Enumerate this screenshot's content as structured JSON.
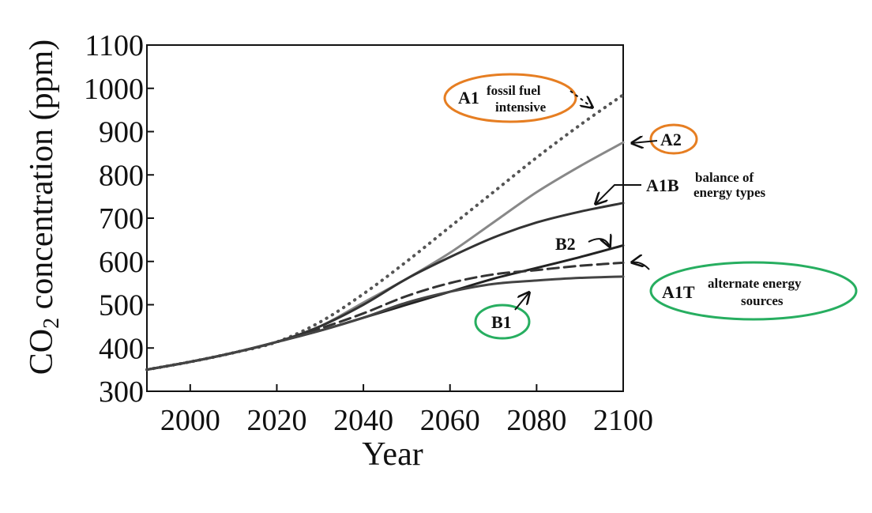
{
  "chart_data": {
    "type": "line",
    "xlabel": "Year",
    "ylabel_main": "CO",
    "ylabel_sub": "2",
    "ylabel_rest": " concentration (ppm)",
    "xlim": [
      1990,
      2100
    ],
    "ylim": [
      300,
      1100
    ],
    "xticks": [
      2000,
      2020,
      2040,
      2060,
      2080,
      2100
    ],
    "yticks": [
      300,
      400,
      500,
      600,
      700,
      800,
      900,
      1000,
      1100
    ],
    "grid": false,
    "legend": "none",
    "x": [
      1990,
      2000,
      2010,
      2020,
      2030,
      2040,
      2050,
      2060,
      2070,
      2080,
      2090,
      2100
    ],
    "series": [
      {
        "name": "A1",
        "style": "dotted",
        "color": "#555555",
        "values": [
          350,
          368,
          389,
          414,
          460,
          525,
          600,
          680,
          760,
          840,
          915,
          985
        ]
      },
      {
        "name": "A2",
        "style": "solid",
        "color": "#888888",
        "values": [
          350,
          368,
          389,
          414,
          450,
          505,
          560,
          620,
          690,
          760,
          820,
          875
        ]
      },
      {
        "name": "A1B",
        "style": "solid",
        "color": "#333333",
        "values": [
          350,
          368,
          389,
          414,
          450,
          500,
          560,
          610,
          655,
          690,
          715,
          735
        ]
      },
      {
        "name": "B2",
        "style": "solid",
        "color": "#222222",
        "values": [
          350,
          368,
          389,
          414,
          440,
          470,
          500,
          530,
          560,
          585,
          610,
          637
        ]
      },
      {
        "name": "A1T",
        "style": "dashed",
        "color": "#333333",
        "values": [
          350,
          368,
          389,
          414,
          445,
          480,
          520,
          550,
          570,
          580,
          590,
          597
        ]
      },
      {
        "name": "B1",
        "style": "solid",
        "color": "#444444",
        "values": [
          350,
          368,
          389,
          414,
          440,
          470,
          505,
          530,
          548,
          556,
          562,
          565
        ]
      }
    ],
    "annotations": [
      {
        "id": "A1",
        "main": "A1",
        "sub1": "fossil fuel",
        "sub2": "intensive",
        "circle": "#e67e22"
      },
      {
        "id": "A2",
        "main": "A2",
        "circle": "#e67e22"
      },
      {
        "id": "A1B",
        "main": "A1B",
        "sub1": "balance of",
        "sub2": "energy types"
      },
      {
        "id": "B2",
        "main": "B2"
      },
      {
        "id": "A1T",
        "main": "A1T",
        "sub1": "alternate energy",
        "sub2": "sources",
        "circle": "#27ae60"
      },
      {
        "id": "B1",
        "main": "B1",
        "circle": "#27ae60"
      }
    ]
  }
}
